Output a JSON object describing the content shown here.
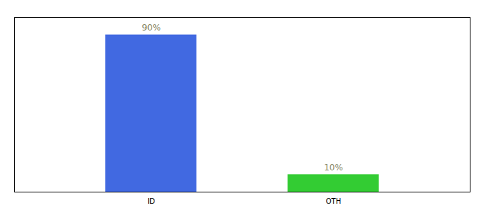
{
  "chart_data": {
    "type": "bar",
    "categories": [
      "ID",
      "OTH"
    ],
    "values": [
      90,
      10
    ],
    "value_labels": [
      "90%",
      "10%"
    ],
    "data_labels": true,
    "colors": [
      "#4169e1",
      "#33cc33"
    ],
    "ylim": [
      0,
      100
    ],
    "tick_labels": "x"
  }
}
